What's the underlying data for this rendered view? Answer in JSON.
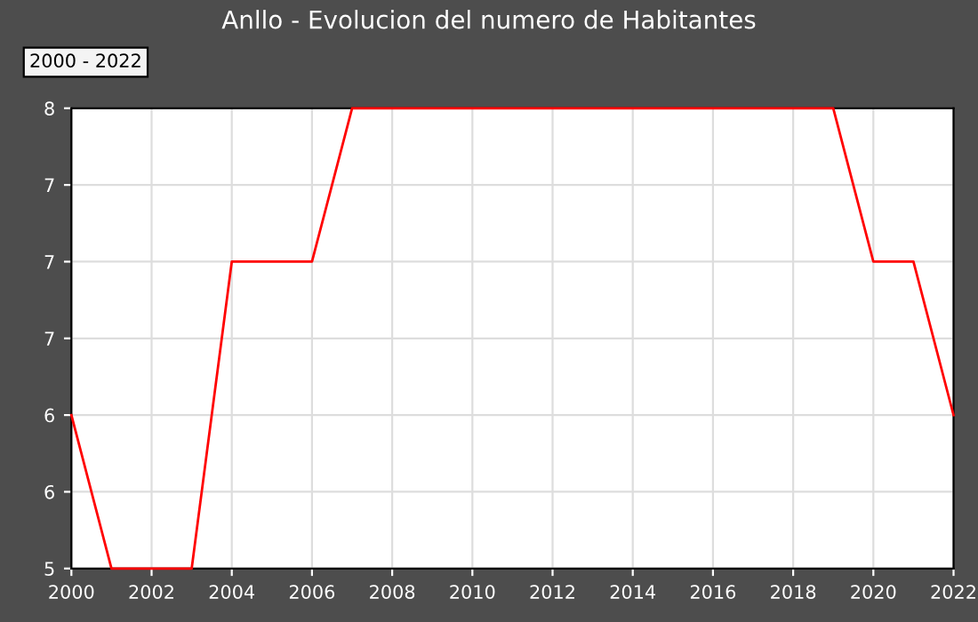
{
  "chart_data": {
    "type": "line",
    "title": "Anllo - Evolucion del numero de Habitantes",
    "annotations": [
      "2000 - 2022"
    ],
    "x": [
      2000,
      2001,
      2002,
      2003,
      2004,
      2005,
      2006,
      2007,
      2008,
      2009,
      2010,
      2011,
      2012,
      2013,
      2014,
      2015,
      2016,
      2017,
      2018,
      2019,
      2020,
      2021,
      2022
    ],
    "series": [
      {
        "color": "#ff0000",
        "values": [
          6,
          5,
          5,
          5,
          7,
          7,
          7,
          8,
          8,
          8,
          8,
          8,
          8,
          8,
          8,
          8,
          8,
          8,
          8,
          8,
          7,
          7,
          6
        ]
      }
    ],
    "xlim": [
      2000,
      2022
    ],
    "xticks": [
      2000,
      2002,
      2004,
      2006,
      2008,
      2010,
      2012,
      2014,
      2016,
      2018,
      2020,
      2022
    ],
    "ylim": [
      5,
      8
    ],
    "yticks": [
      5,
      {
        "value": 5.5,
        "label": "6"
      },
      6,
      {
        "value": 6.5,
        "label": "7"
      },
      7,
      {
        "value": 7.5,
        "label": "7"
      },
      8
    ],
    "grid": true,
    "marker": "none",
    "line_style": "solid"
  }
}
